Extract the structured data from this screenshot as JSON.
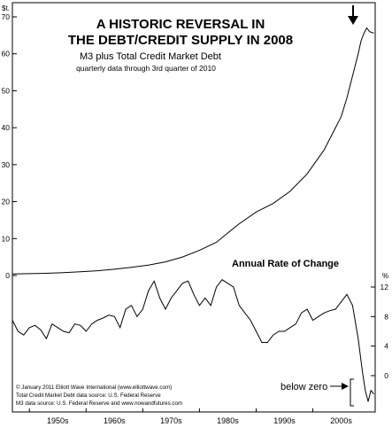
{
  "chart_data": [
    {
      "type": "line",
      "title": "A HISTORIC REVERSAL IN",
      "title2": "THE DEBT/CREDIT SUPPLY IN 2008",
      "subtitle": "M3 plus Total Credit Market Debt",
      "subtitle2": "quarterly data through 3rd quarter of 2010",
      "y_unit": "$t.",
      "ylim": [
        0,
        70
      ],
      "y_ticks": [
        "0",
        "10",
        "20",
        "30",
        "40",
        "50",
        "60",
        "70"
      ],
      "y_tick_values": [
        0,
        10,
        20,
        30,
        40,
        50,
        60,
        70
      ],
      "xlim": [
        1947,
        2011
      ],
      "series": [
        {
          "x": [
            1947,
            1950,
            1953,
            1956,
            1959,
            1962,
            1965,
            1968,
            1971,
            1974,
            1977,
            1980,
            1983,
            1985,
            1987,
            1990,
            1993,
            1996,
            1999,
            2002,
            2005,
            2006,
            2007,
            2008,
            2008.5,
            2009,
            2009.5,
            2010,
            2010.75
          ],
          "y": [
            0.4,
            0.5,
            0.6,
            0.8,
            1.0,
            1.3,
            1.7,
            2.2,
            2.8,
            3.7,
            5.0,
            6.8,
            9.0,
            11.5,
            14.0,
            17.2,
            19.5,
            22.8,
            27.5,
            34.0,
            43.0,
            48.0,
            54.0,
            60.0,
            63.5,
            65.5,
            67.0,
            66.0,
            65.6
          ]
        }
      ]
    },
    {
      "type": "line",
      "title": "Annual Rate of Change",
      "y_unit": "%",
      "ylim": [
        -4,
        13
      ],
      "y_ticks": [
        "12",
        "8",
        "4",
        "0"
      ],
      "y_tick_values": [
        12,
        8,
        4,
        0
      ],
      "xlim": [
        1947,
        2011
      ],
      "x_ticks": [
        "1950s",
        "1960s",
        "1970s",
        "1980s",
        "1990s",
        "2000s"
      ],
      "x_tick_values": [
        1950,
        1960,
        1970,
        1980,
        1990,
        2000
      ],
      "annotation": "below zero",
      "series": [
        {
          "x": [
            1947,
            1948,
            1949,
            1950,
            1951,
            1952,
            1953,
            1954,
            1955,
            1956,
            1957,
            1958,
            1959,
            1960,
            1961,
            1962,
            1963,
            1964,
            1965,
            1966,
            1967,
            1968,
            1969,
            1970,
            1971,
            1972,
            1973,
            1974,
            1975,
            1976,
            1977,
            1978,
            1979,
            1980,
            1981,
            1982,
            1983,
            1984,
            1985,
            1986,
            1987,
            1988,
            1989,
            1990,
            1991,
            1992,
            1993,
            1994,
            1995,
            1996,
            1997,
            1998,
            1999,
            2000,
            2001,
            2002,
            2003,
            2004,
            2005,
            2006,
            2007,
            2008,
            2008.75,
            2009.25,
            2009.75,
            2010.25,
            2010.75
          ],
          "y": [
            7.5,
            6.0,
            5.5,
            6.5,
            6.8,
            6.2,
            5.0,
            7.0,
            6.5,
            6.0,
            5.8,
            7.0,
            6.8,
            6.0,
            7.0,
            7.5,
            7.8,
            8.2,
            8.0,
            6.5,
            9.0,
            9.5,
            8.0,
            9.0,
            11.5,
            12.8,
            10.5,
            9.0,
            10.5,
            11.5,
            12.5,
            12.8,
            11.0,
            9.5,
            10.5,
            9.5,
            12.0,
            13.0,
            12.5,
            12.0,
            9.5,
            8.5,
            7.5,
            6.0,
            4.5,
            4.5,
            5.5,
            6.0,
            6.0,
            6.5,
            7.0,
            8.5,
            9.0,
            7.5,
            8.0,
            8.5,
            8.8,
            9.0,
            10.0,
            11.0,
            9.5,
            5.0,
            0.5,
            -2.0,
            -3.5,
            -2.0,
            -2.5
          ]
        }
      ]
    }
  ],
  "arrow_icon": "down-arrow-icon",
  "source": {
    "line1": "© January 2011 Elliott Wave International (www.elliottwave.com)",
    "line2": "Total Credit Market Debt data source: U.S. Federal Reserve",
    "line3": "M3 data source: U.S. Federal Reserve and www.nowandfutures.com"
  }
}
